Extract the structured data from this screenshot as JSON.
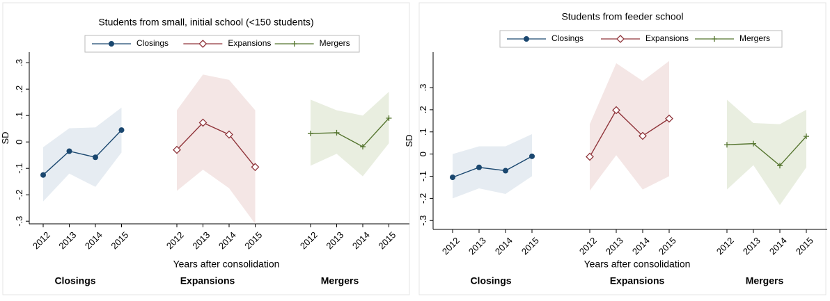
{
  "chart_data": [
    {
      "type": "line",
      "title": "Students from small, initial school (<150 students)",
      "y_label": "SD",
      "x_label": "Years after consolidation",
      "groups": [
        "Closings",
        "Expansions",
        "Mergers"
      ],
      "categories": [
        "2012",
        "2013",
        "2014",
        "2015"
      ],
      "ylim": [
        -0.31,
        0.34
      ],
      "yticks": [
        {
          "value": 0.3,
          "label": ".3"
        },
        {
          "value": 0.2,
          "label": ".2"
        },
        {
          "value": 0.1,
          "label": ".1"
        },
        0,
        {
          "value": -0.1,
          "label": "-.1"
        },
        {
          "value": -0.2,
          "label": "-.2"
        },
        {
          "value": -0.3,
          "label": "-.3"
        }
      ],
      "series": [
        {
          "name": "Closings",
          "color": "#1a476f",
          "band_color": "#e6ecf2",
          "marker": "circle",
          "values": [
            -0.125,
            -0.035,
            -0.058,
            0.045
          ],
          "lower": [
            -0.225,
            -0.12,
            -0.17,
            -0.04
          ],
          "upper": [
            -0.02,
            0.052,
            0.055,
            0.13
          ]
        },
        {
          "name": "Expansions",
          "color": "#90353b",
          "band_color": "#f4e6e5",
          "marker": "diamond",
          "values": [
            -0.03,
            0.073,
            0.028,
            -0.095
          ],
          "lower": [
            -0.185,
            -0.105,
            -0.175,
            -0.31
          ],
          "upper": [
            0.12,
            0.255,
            0.235,
            0.12
          ]
        },
        {
          "name": "Mergers",
          "color": "#55752f",
          "band_color": "#e9eee0",
          "marker": "plus",
          "values": [
            0.032,
            0.035,
            -0.018,
            0.09
          ],
          "lower": [
            -0.09,
            -0.045,
            -0.13,
            -0.005
          ],
          "upper": [
            0.16,
            0.12,
            0.1,
            0.19
          ]
        }
      ]
    },
    {
      "type": "line",
      "title": "Students from feeder school",
      "y_label": "SD",
      "x_label": "Years after consolidation",
      "groups": [
        "Closings",
        "Expansions",
        "Mergers"
      ],
      "categories": [
        "2012",
        "2013",
        "2014",
        "2015"
      ],
      "ylim": [
        -0.34,
        0.46
      ],
      "yticks": [
        {
          "value": 0.3,
          "label": ".3"
        },
        {
          "value": 0.2,
          "label": ".2"
        },
        {
          "value": 0.1,
          "label": ".1"
        },
        0,
        {
          "value": -0.1,
          "label": "-.1"
        },
        {
          "value": -0.2,
          "label": "-.2"
        },
        {
          "value": -0.3,
          "label": "-.3"
        }
      ],
      "series": [
        {
          "name": "Closings",
          "color": "#1a476f",
          "band_color": "#e6ecf2",
          "marker": "circle",
          "values": [
            -0.105,
            -0.06,
            -0.075,
            -0.01
          ],
          "lower": [
            -0.2,
            -0.155,
            -0.18,
            -0.1
          ],
          "upper": [
            0.0,
            0.035,
            0.035,
            0.09
          ]
        },
        {
          "name": "Expansions",
          "color": "#90353b",
          "band_color": "#f4e6e5",
          "marker": "diamond",
          "values": [
            -0.012,
            0.198,
            0.082,
            0.16
          ],
          "lower": [
            -0.165,
            -0.005,
            -0.16,
            -0.1
          ],
          "upper": [
            0.135,
            0.41,
            0.33,
            0.42
          ]
        },
        {
          "name": "Mergers",
          "color": "#55752f",
          "band_color": "#e9eee0",
          "marker": "plus",
          "values": [
            0.042,
            0.047,
            -0.052,
            0.08
          ],
          "lower": [
            -0.16,
            -0.05,
            -0.23,
            -0.06
          ],
          "upper": [
            0.245,
            0.14,
            0.135,
            0.2
          ]
        }
      ]
    }
  ]
}
